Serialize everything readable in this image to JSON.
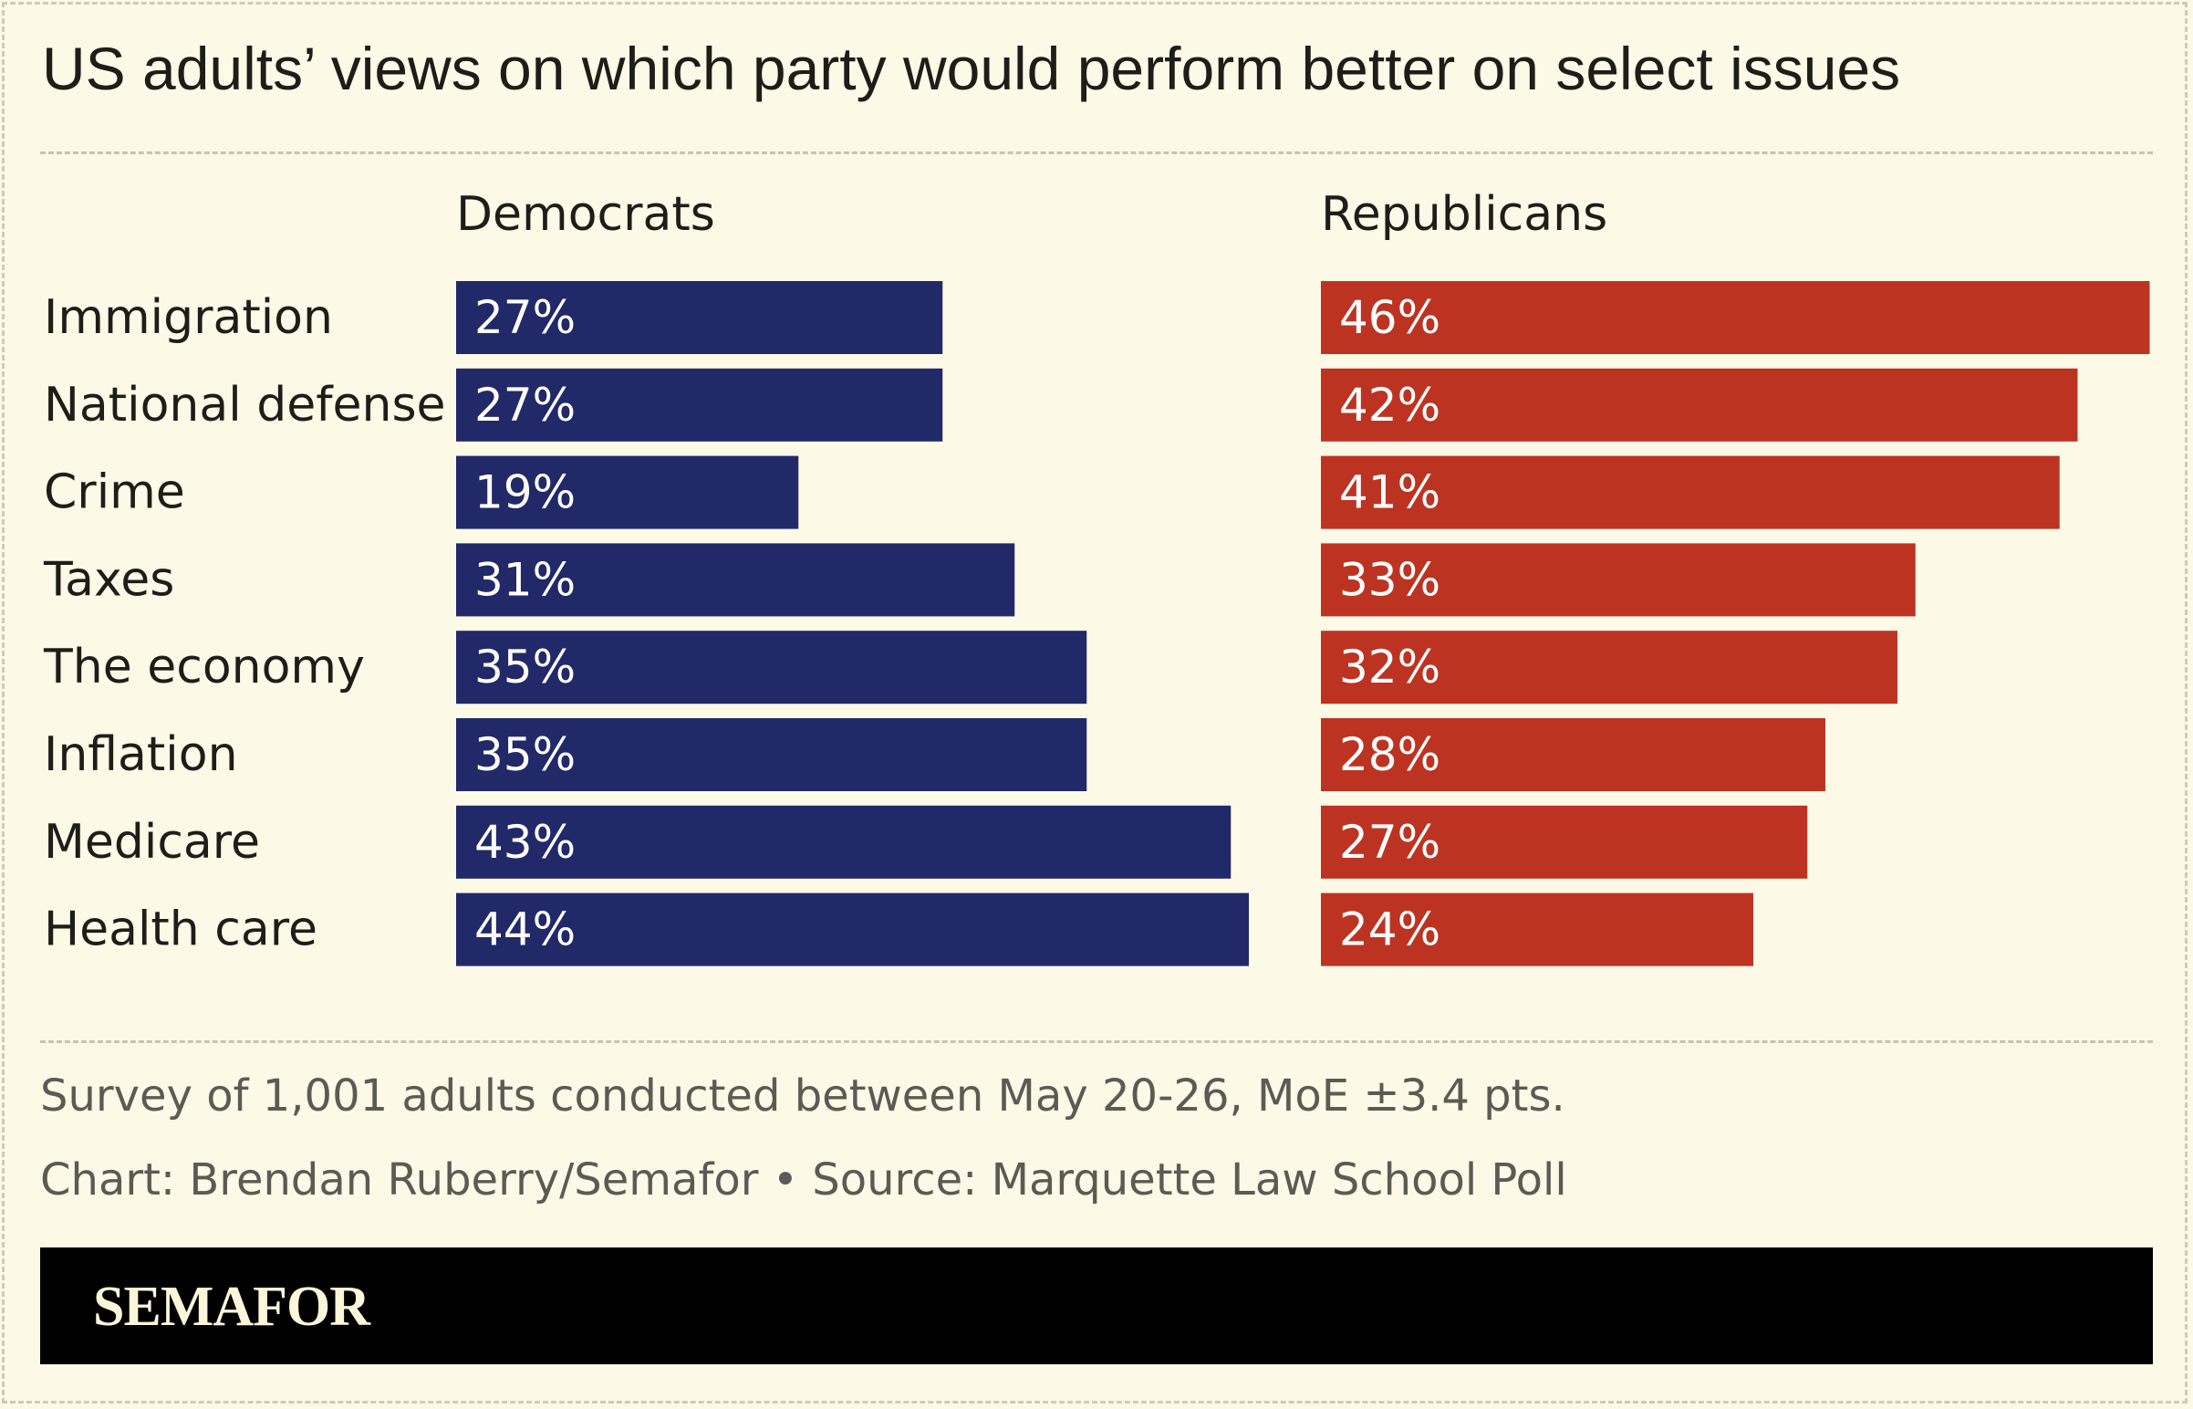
{
  "title": "US adults’ views on which party would perform better on select issues",
  "chart_data": {
    "type": "bar",
    "categories": [
      "Immigration",
      "National defense",
      "Crime",
      "Taxes",
      "The economy",
      "Inflation",
      "Medicare",
      "Health care"
    ],
    "series": [
      {
        "name": "Democrats",
        "values": [
          27,
          27,
          19,
          31,
          35,
          35,
          43,
          44
        ],
        "labels": [
          "27%",
          "27%",
          "19%",
          "31%",
          "35%",
          "35%",
          "43%",
          "44%"
        ],
        "color": "#212968"
      },
      {
        "name": "Republicans",
        "values": [
          46,
          42,
          41,
          33,
          32,
          28,
          27,
          24
        ],
        "labels": [
          "46%",
          "42%",
          "41%",
          "33%",
          "32%",
          "28%",
          "27%",
          "24%"
        ],
        "color": "#bd3322"
      }
    ],
    "unit": "%",
    "xlim": [
      0,
      46
    ],
    "grid": false,
    "legend": "column headers"
  },
  "notes": {
    "survey": "Survey of 1,001 adults conducted between May 20-26, MoE ±3.4 pts.",
    "credit": "Chart: Brendan Ruberry/Semafor • Source: Marquette Law School Poll"
  },
  "brand": {
    "logo_text": "SEMAFOR",
    "background": "#fcf9e6",
    "text_color": "#1e1d19"
  }
}
